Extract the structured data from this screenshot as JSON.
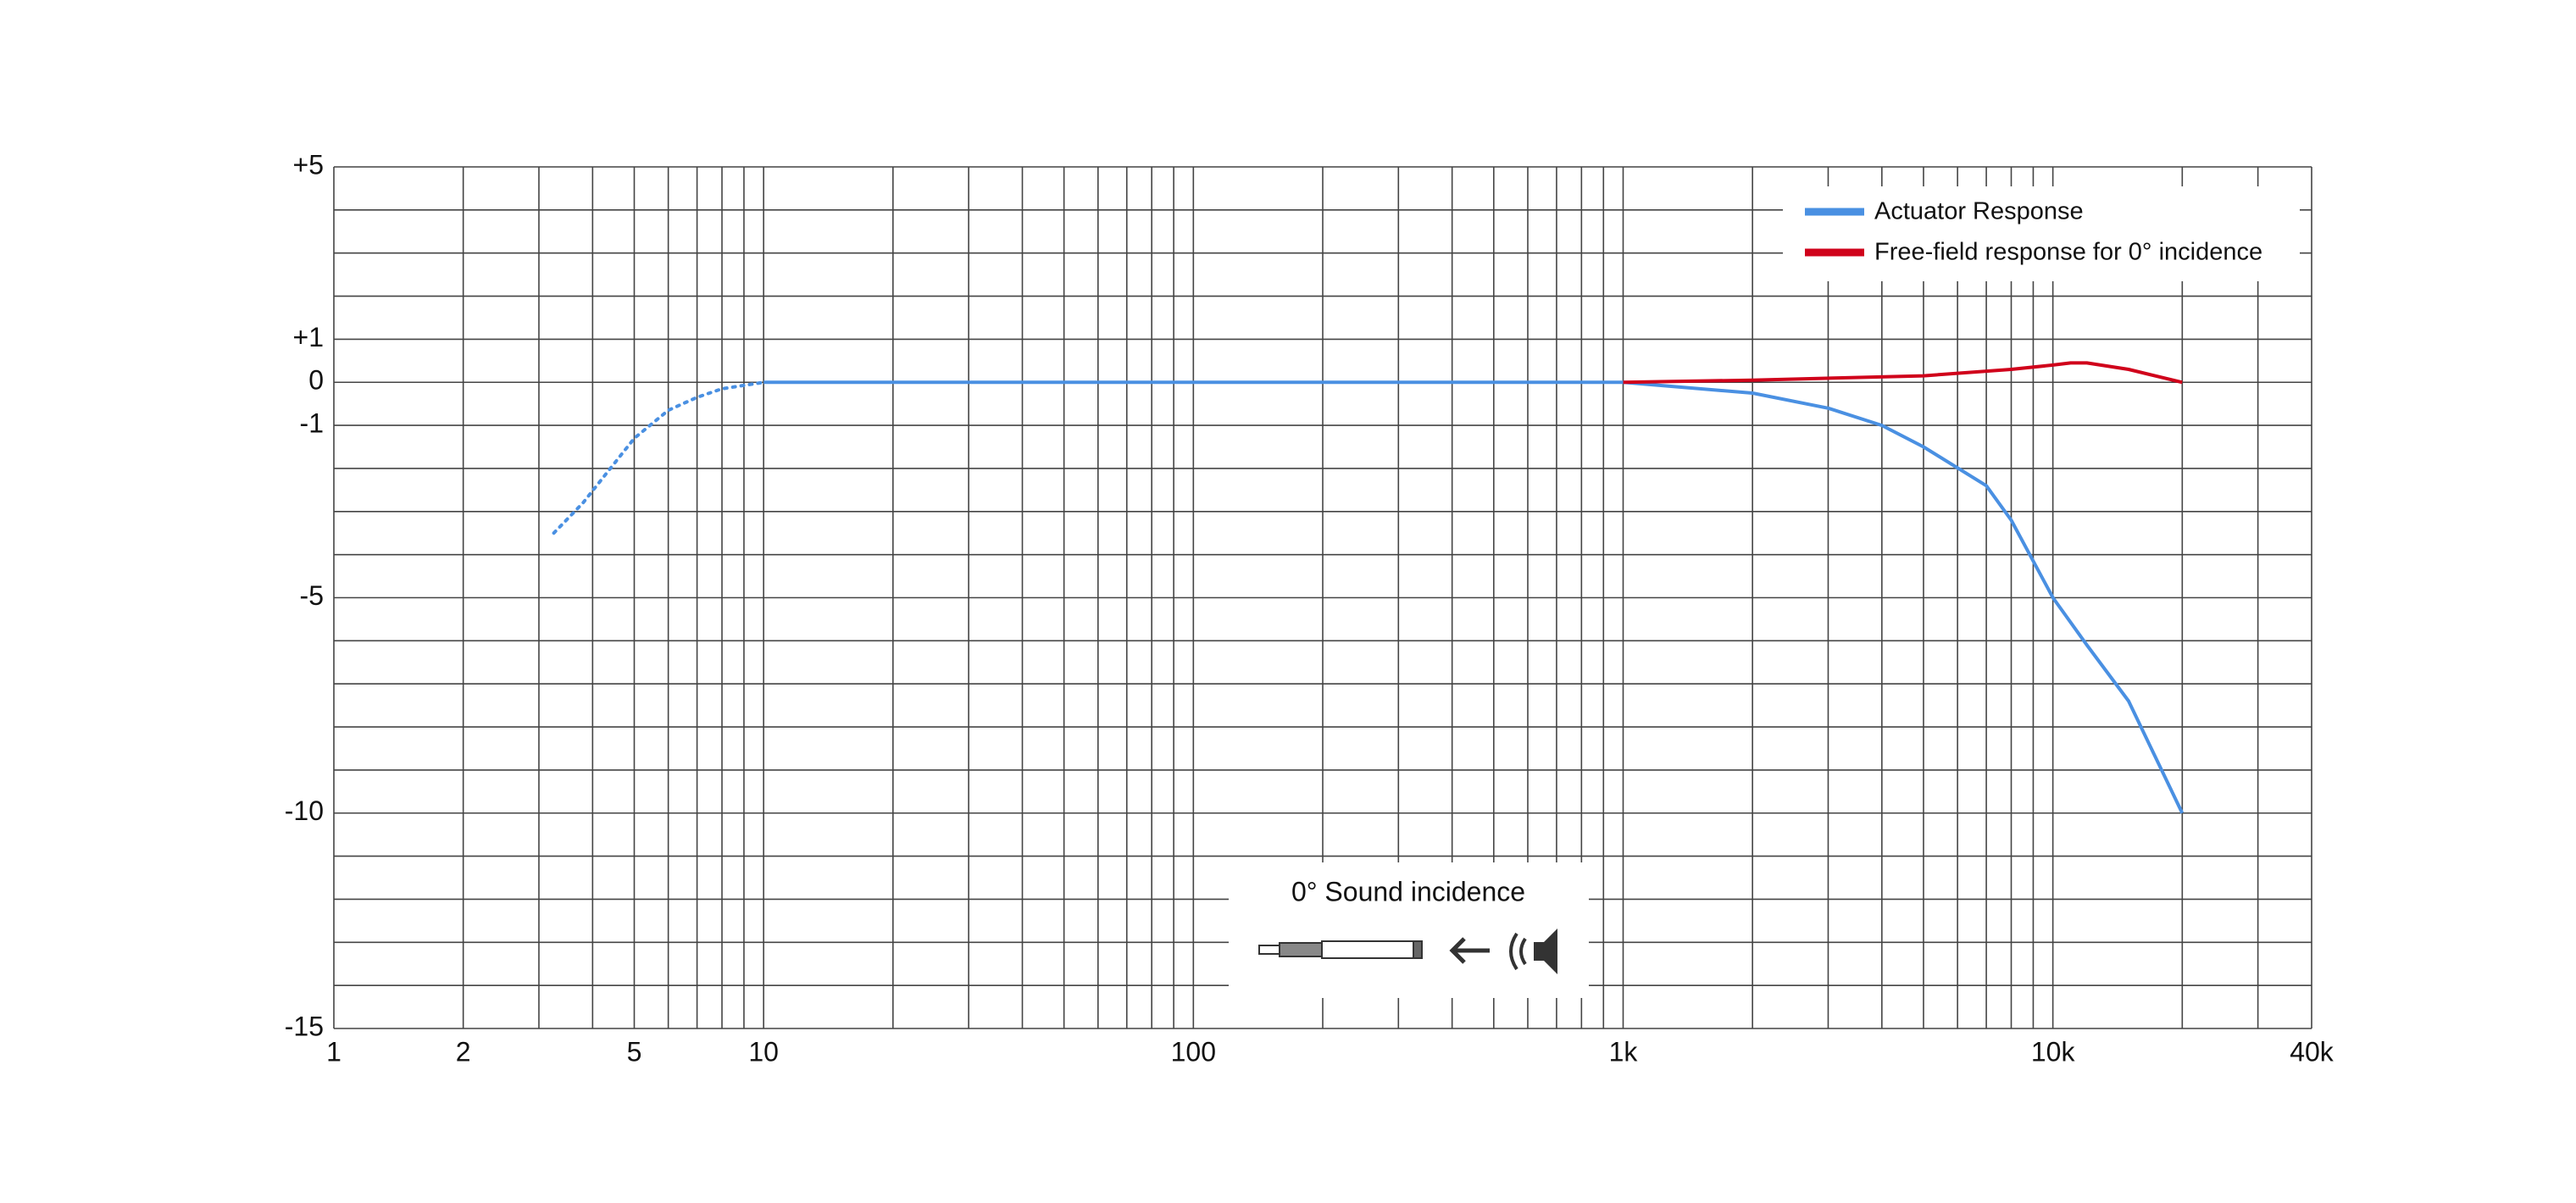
{
  "chart_data": {
    "type": "line",
    "xscale": "log",
    "grid": true,
    "legend": "upper right",
    "xlim": [
      1,
      40000
    ],
    "ylim": [
      -15,
      5
    ],
    "xticks": [
      1,
      2,
      5,
      10,
      100,
      {
        "value": 1000,
        "label": "1k"
      },
      {
        "value": 10000,
        "label": "10k"
      },
      {
        "value": 40000,
        "label": "40k"
      }
    ],
    "xminorticks": [
      3,
      4,
      6,
      7,
      8,
      9,
      20,
      30,
      40,
      50,
      60,
      70,
      80,
      90,
      200,
      300,
      400,
      500,
      600,
      700,
      800,
      900,
      2000,
      3000,
      4000,
      5000,
      6000,
      7000,
      8000,
      9000,
      20000,
      30000
    ],
    "yticks": [
      {
        "value": 5,
        "label": "+5"
      },
      {
        "value": 1,
        "label": "+1"
      },
      0,
      -1,
      -5,
      -10,
      -15
    ],
    "yminorticks": [
      4,
      3,
      2,
      -2,
      -3,
      -4,
      -6,
      -7,
      -8,
      -9,
      -11,
      -12,
      -13,
      -14
    ],
    "series": [
      {
        "name": "Actuator Response",
        "color": "#4a90e2",
        "dotted_below": 10,
        "x": [
          3.25,
          3.8,
          5,
          6,
          7,
          8,
          10,
          100,
          1000,
          2000,
          3000,
          4000,
          5000,
          7000,
          8000,
          10000,
          12000,
          15000,
          20000
        ],
        "values": [
          -3.5,
          -2.8,
          -1.3,
          -0.65,
          -0.35,
          -0.15,
          0,
          0,
          0,
          -0.25,
          -0.6,
          -1.0,
          -1.5,
          -2.4,
          -3.2,
          -5.0,
          -6.1,
          -7.4,
          -10.0
        ]
      },
      {
        "name": "Free-field response for 0° incidence",
        "color": "#d0021b",
        "x": [
          1000,
          2000,
          5000,
          8000,
          10000,
          11000,
          12000,
          15000,
          20000
        ],
        "values": [
          0,
          0.05,
          0.15,
          0.3,
          0.4,
          0.45,
          0.45,
          0.3,
          0
        ]
      }
    ],
    "annotation": "0° Sound incidence"
  }
}
